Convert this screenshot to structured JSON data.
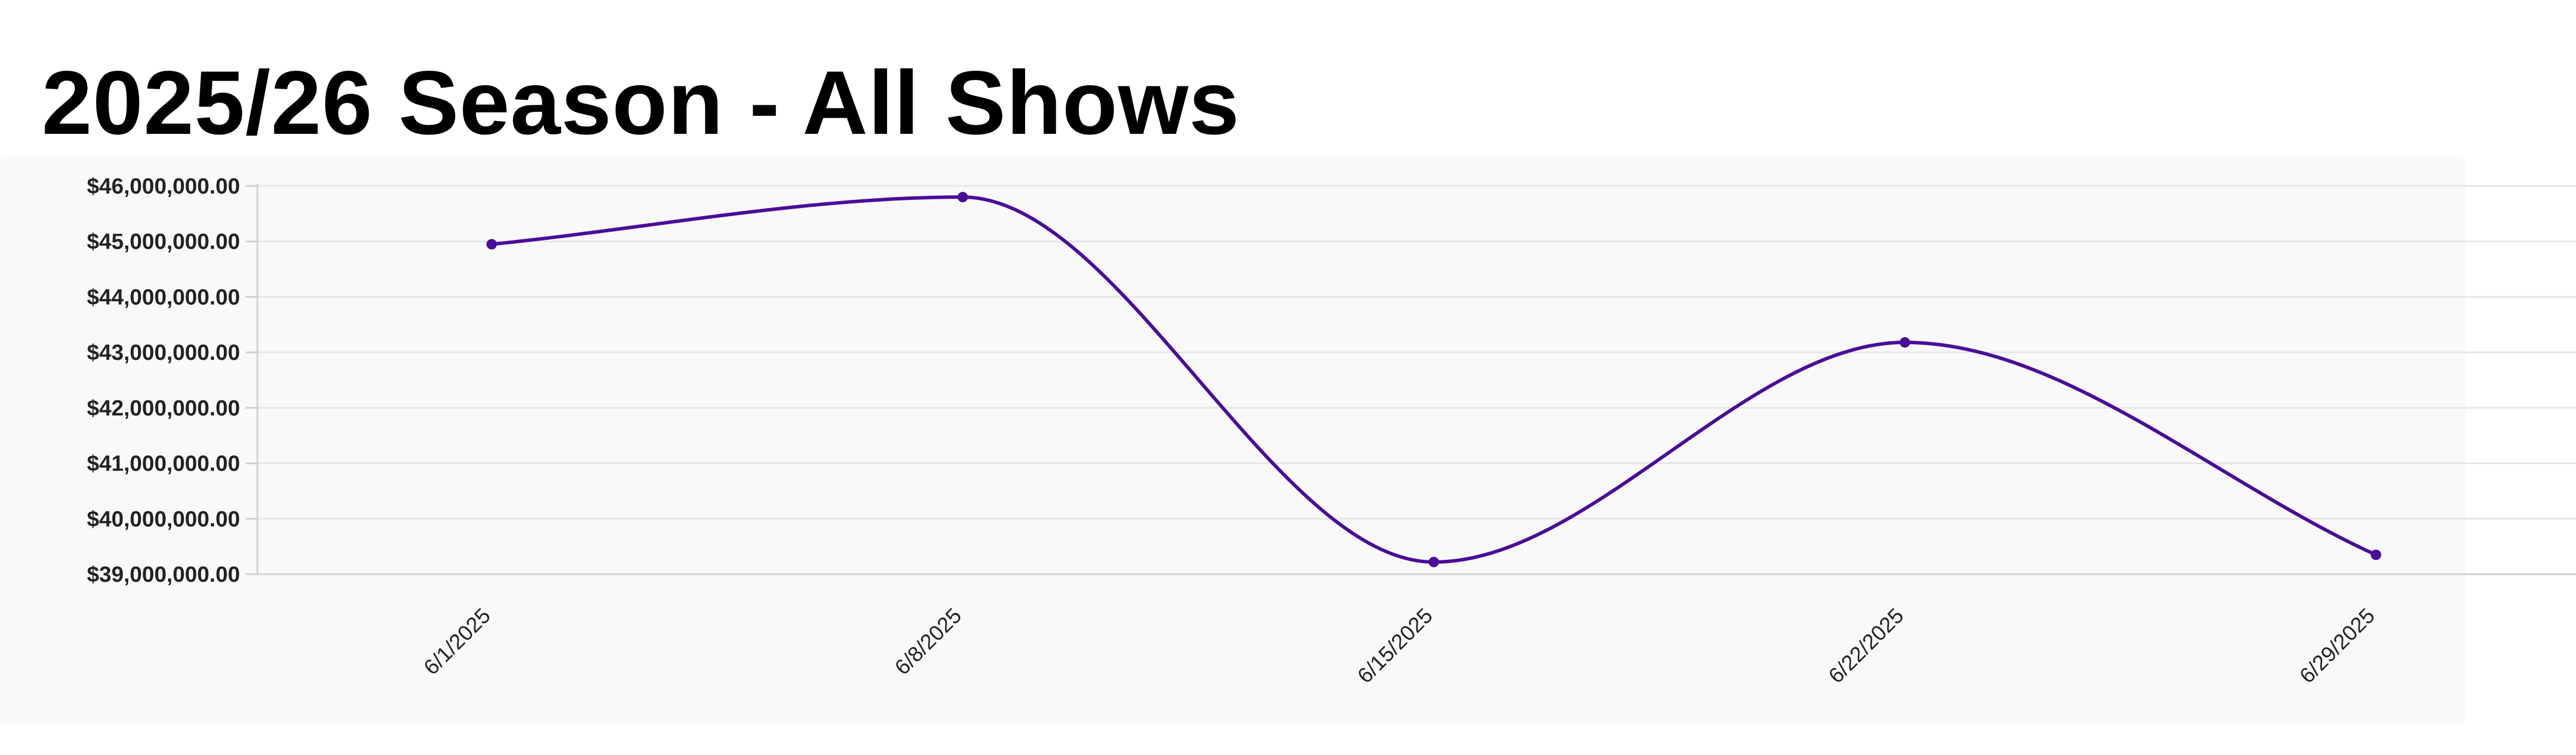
{
  "title": "2025/26 Season - All Shows",
  "colors": {
    "series": "#4a0c99",
    "grid": "#e6e6e6",
    "axis": "#cfcfcf",
    "panel": "#f9f9f9",
    "text": "#222222"
  },
  "chart_data": {
    "type": "line",
    "title": "2025/26 Season - All Shows",
    "xlabel": "",
    "ylabel": "",
    "x": [
      "6/1/2025",
      "6/8/2025",
      "6/15/2025",
      "6/22/2025",
      "6/29/2025"
    ],
    "series": [
      {
        "values": [
          44950000,
          45800000,
          39220000,
          43180000,
          39350000
        ]
      }
    ],
    "ylim": [
      39000000,
      46000000
    ],
    "y_ticks": [
      "$46,000,000.00",
      "$45,000,000.00",
      "$44,000,000.00",
      "$43,000,000.00",
      "$42,000,000.00",
      "$41,000,000.00",
      "$40,000,000.00",
      "$39,000,000.00"
    ],
    "grid": true,
    "legend": "none",
    "curve": "smooth"
  }
}
